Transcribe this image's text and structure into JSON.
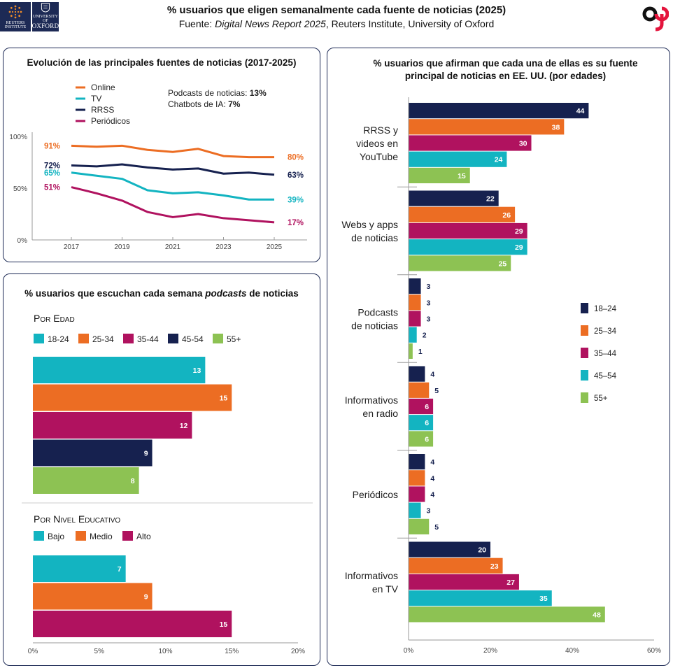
{
  "header": {
    "title": "% usuarios que eligen semanalmente cada fuente de noticias (2025)",
    "source_label": "Fuente: ",
    "source_report": "Digital News Report 2025",
    "source_rest": ", Reuters Institute, University of Oxford",
    "logo_left_text": [
      "REUTERS",
      "INSTITUTE"
    ],
    "logo_oxford_small": "UNIVERSITY OF",
    "logo_oxford_big": "OXFORD"
  },
  "colors": {
    "navy": "#16214f",
    "orange": "#ec6d23",
    "magenta": "#b0125f",
    "teal": "#13b4c1",
    "green": "#8dc253",
    "panel_border": "#1d2a55",
    "brand_red": "#e4143c"
  },
  "chart_data": [
    {
      "id": "trend",
      "type": "line",
      "title": "Evolución de las principales fuentes de noticias (2017-2025)",
      "x": [
        2017,
        2018,
        2019,
        2020,
        2021,
        2022,
        2023,
        2024,
        2025
      ],
      "x_ticks": [
        "2017",
        "2019",
        "2021",
        "2023",
        "2025"
      ],
      "y_ticks": [
        "0%",
        "50%",
        "100%"
      ],
      "ylim": [
        0,
        100
      ],
      "series": [
        {
          "name": "Online",
          "color": "#ec6d23",
          "values": [
            91,
            90,
            91,
            87,
            85,
            88,
            81,
            80,
            80
          ],
          "start_label": "91%",
          "end_label": "80%"
        },
        {
          "name": "TV",
          "color": "#13b4c1",
          "values": [
            65,
            62,
            59,
            48,
            45,
            46,
            43,
            39,
            39
          ],
          "start_label": "65%",
          "end_label": "39%"
        },
        {
          "name": "RRSS",
          "color": "#16214f",
          "values": [
            72,
            71,
            73,
            70,
            68,
            69,
            64,
            65,
            63
          ],
          "start_label": "72%",
          "end_label": "63%"
        },
        {
          "name": "Periódicos",
          "color": "#b0125f",
          "values": [
            51,
            45,
            38,
            27,
            22,
            25,
            21,
            19,
            17
          ],
          "start_label": "51%",
          "end_label": "17%"
        }
      ],
      "notes": [
        {
          "label": "Podcasts de noticias: ",
          "value": "13%"
        },
        {
          "label": "Chatbots de IA: ",
          "value": "7%"
        }
      ]
    },
    {
      "id": "podcasts",
      "type": "bar",
      "title_pre": "% usuarios que escuchan cada semana ",
      "title_em": "podcasts",
      "title_post": " de noticias",
      "xlim": [
        0,
        20
      ],
      "x_ticks": [
        "0%",
        "5%",
        "10%",
        "15%",
        "20%"
      ],
      "groups": [
        {
          "label": "Por Edad",
          "series": [
            {
              "name": "18-24",
              "value": 13,
              "color": "#13b4c1"
            },
            {
              "name": "25-34",
              "value": 15,
              "color": "#ec6d23"
            },
            {
              "name": "35-44",
              "value": 12,
              "color": "#b0125f"
            },
            {
              "name": "45-54",
              "value": 9,
              "color": "#16214f"
            },
            {
              "name": "55+",
              "value": 8,
              "color": "#8dc253"
            }
          ]
        },
        {
          "label": "Por Nivel Educativo",
          "series": [
            {
              "name": "Bajo",
              "value": 7,
              "color": "#13b4c1"
            },
            {
              "name": "Medio",
              "value": 9,
              "color": "#ec6d23"
            },
            {
              "name": "Alto",
              "value": 15,
              "color": "#b0125f"
            }
          ]
        }
      ]
    },
    {
      "id": "main_source",
      "type": "bar",
      "title": "% usuarios que afirman que cada una de ellas es su fuente principal de noticias en EE. UU. (por edades)",
      "xlim": [
        0,
        60
      ],
      "x_ticks": [
        "0%",
        "20%",
        "40%",
        "60%"
      ],
      "legend": [
        {
          "name": "18–24",
          "color": "#16214f"
        },
        {
          "name": "25–34",
          "color": "#ec6d23"
        },
        {
          "name": "35–44",
          "color": "#b0125f"
        },
        {
          "name": "45–54",
          "color": "#13b4c1"
        },
        {
          "name": "55+",
          "color": "#8dc253"
        }
      ],
      "categories": [
        {
          "label": [
            "RRSS y",
            "videos en",
            "YouTube"
          ],
          "values": [
            44,
            38,
            30,
            24,
            15
          ]
        },
        {
          "label": [
            "Webs y apps",
            "de noticias"
          ],
          "values": [
            22,
            26,
            29,
            29,
            25
          ]
        },
        {
          "label": [
            "Podcasts",
            "de noticias"
          ],
          "values": [
            3,
            3,
            3,
            2,
            1
          ]
        },
        {
          "label": [
            "Informativos",
            "en radio"
          ],
          "values": [
            4,
            5,
            6,
            6,
            6
          ]
        },
        {
          "label": [
            "Periódicos"
          ],
          "values": [
            4,
            4,
            4,
            3,
            5
          ]
        },
        {
          "label": [
            "Informativos",
            "en TV"
          ],
          "values": [
            20,
            23,
            27,
            35,
            48
          ]
        }
      ]
    }
  ]
}
